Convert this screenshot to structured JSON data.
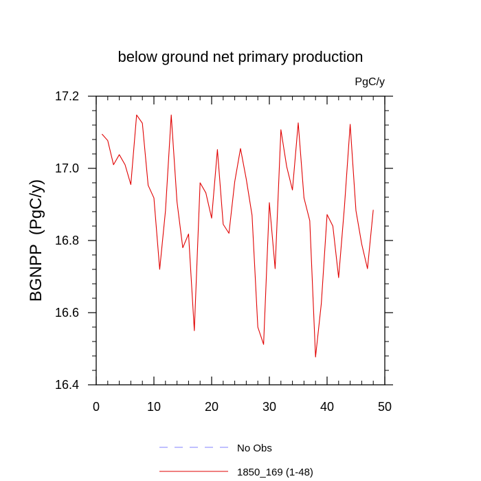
{
  "chart_data": {
    "type": "line",
    "title": "below ground net primary production",
    "units": "PgC/y",
    "xlabel": "",
    "ylabel": "BGNPP  (PgC/y)",
    "xlim": [
      0,
      50
    ],
    "ylim": [
      16.4,
      17.2
    ],
    "x_ticks": [
      0,
      10,
      20,
      30,
      40,
      50
    ],
    "x_tick_labels": [
      "0",
      "10",
      "20",
      "30",
      "40",
      "50"
    ],
    "y_ticks": [
      16.4,
      16.6,
      16.8,
      17.0,
      17.2
    ],
    "y_tick_labels": [
      "16.4",
      "16.6",
      "16.8",
      "17.0",
      "17.2"
    ],
    "series": [
      {
        "name": "1850_169 (1-48)",
        "color": "#e00000",
        "style": "solid",
        "x": [
          1,
          2,
          3,
          4,
          5,
          6,
          7,
          8,
          9,
          10,
          11,
          12,
          13,
          14,
          15,
          16,
          17,
          18,
          19,
          20,
          21,
          22,
          23,
          24,
          25,
          26,
          27,
          28,
          29,
          30,
          31,
          32,
          33,
          34,
          35,
          36,
          37,
          38,
          39,
          40,
          41,
          42,
          43,
          44,
          45,
          46,
          47,
          48
        ],
        "values": [
          17.095,
          17.077,
          17.01,
          17.038,
          17.01,
          16.955,
          17.148,
          17.125,
          16.953,
          16.918,
          16.72,
          16.882,
          17.148,
          16.907,
          16.78,
          16.818,
          16.55,
          16.96,
          16.932,
          16.862,
          17.052,
          16.845,
          16.82,
          16.963,
          17.055,
          16.97,
          16.87,
          16.56,
          16.512,
          16.905,
          16.722,
          17.107,
          17.005,
          16.94,
          17.126,
          16.918,
          16.855,
          16.477,
          16.625,
          16.872,
          16.84,
          16.697,
          16.892,
          17.122,
          16.883,
          16.79,
          16.722,
          16.885
        ]
      },
      {
        "name": "No Obs",
        "color": "#8080ff",
        "style": "dashed",
        "x": [],
        "values": []
      }
    ],
    "legend_position": "bottom"
  }
}
